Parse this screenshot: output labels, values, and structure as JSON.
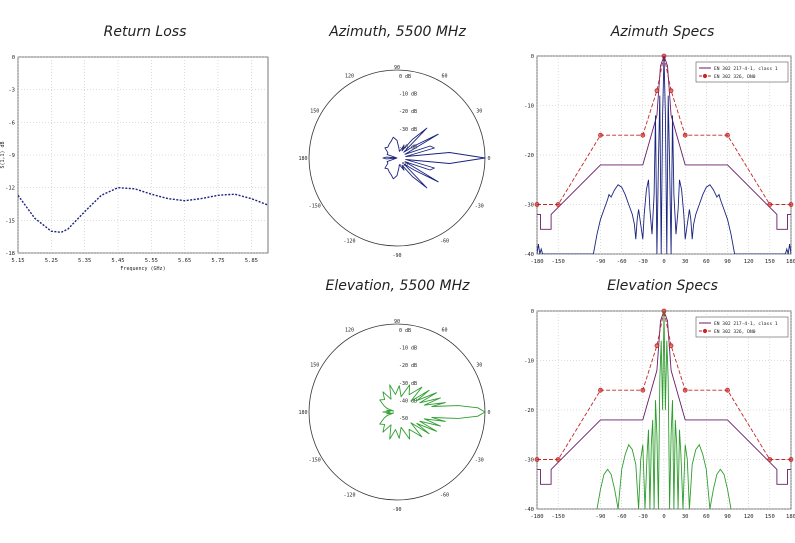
{
  "chart_data": [
    {
      "id": "return_loss",
      "type": "line",
      "title": "Return Loss",
      "xlabel": "Frequency (GHz)",
      "ylabel": "S(1,1) dB",
      "xlim": [
        5.15,
        5.9
      ],
      "ylim": [
        -18,
        0
      ],
      "x_ticks": [
        "5.15",
        "5.25",
        "5.35",
        "5.45",
        "5.55",
        "5.65",
        "5.75",
        "5.85"
      ],
      "y_ticks": [
        "0",
        "-3",
        "-6",
        "-9",
        "-12",
        "-15",
        "-18"
      ],
      "grid": true,
      "series": [
        {
          "color": "#1a237e",
          "x": [
            5.15,
            5.2,
            5.25,
            5.28,
            5.3,
            5.35,
            5.4,
            5.45,
            5.5,
            5.55,
            5.6,
            5.65,
            5.7,
            5.75,
            5.8,
            5.85,
            5.9
          ],
          "y": [
            -12.7,
            -14.8,
            -16.0,
            -16.1,
            -15.8,
            -14.2,
            -12.7,
            -12.0,
            -12.1,
            -12.6,
            -13.0,
            -13.2,
            -13.0,
            -12.7,
            -12.6,
            -13.0,
            -13.6
          ]
        }
      ]
    },
    {
      "id": "azimuth_polar",
      "type": "polar",
      "title": "Azimuth, 5500 MHz",
      "ring_labels": [
        "0 dB",
        "-10 dB",
        "-20 dB",
        "-30 dB",
        "-40 dB",
        "-50"
      ],
      "angle_labels": [
        "90",
        "60",
        "30",
        "0",
        "-30",
        "-60",
        "-90",
        "-120",
        "-150",
        "180",
        "150",
        "120"
      ],
      "r_min_db": -50,
      "series": [
        {
          "color": "#1a237e",
          "angle_deg": [
            0,
            6,
            10,
            15,
            20,
            25,
            30,
            35,
            40,
            45,
            50,
            55,
            60,
            70,
            80,
            90,
            100,
            110,
            120,
            130,
            140,
            150,
            160,
            170,
            175,
            180,
            185,
            190,
            200,
            210,
            220,
            230,
            240,
            250,
            260,
            270,
            280,
            290,
            300,
            305,
            310,
            315,
            320,
            325,
            330,
            335,
            340,
            345,
            350,
            354,
            360
          ],
          "r_db": [
            0,
            -20,
            -45,
            -28,
            -30,
            -45,
            -23,
            -38,
            -45,
            -26,
            -36,
            -45,
            -42,
            -46,
            -44,
            -40,
            -38,
            -40,
            -41,
            -42,
            -41,
            -44,
            -44,
            -50,
            -44,
            -42,
            -44,
            -50,
            -44,
            -44,
            -41,
            -42,
            -41,
            -40,
            -38,
            -40,
            -44,
            -46,
            -42,
            -45,
            -36,
            -26,
            -45,
            -38,
            -23,
            -45,
            -30,
            -28,
            -45,
            -20,
            0
          ]
        }
      ]
    },
    {
      "id": "azimuth_specs",
      "type": "line",
      "title": "Azimuth Specs",
      "xlim": [
        -180,
        180
      ],
      "ylim": [
        -40,
        0
      ],
      "x_ticks": [
        "-180",
        "-150",
        "-90",
        "-60",
        "-30",
        "0",
        "30",
        "60",
        "90",
        "120",
        "150",
        "180"
      ],
      "y_ticks": [
        "0",
        "-10",
        "-20",
        "-30",
        "-40"
      ],
      "grid": true,
      "legend": [
        "EN 302 217-4-1, class 1",
        "EN 302 326, DN0"
      ],
      "legend_placement": "top-right",
      "series": [
        {
          "name": "EN 302 217-4-1, class 1",
          "color": "#6a1b6a",
          "x": [
            -180,
            -175,
            -175,
            -160,
            -160,
            -90,
            -30,
            -10,
            -5,
            0,
            5,
            10,
            30,
            90,
            160,
            160,
            175,
            175,
            180
          ],
          "y": [
            -32,
            -32,
            -35,
            -35,
            -32,
            -22,
            -22,
            -12,
            -2,
            0,
            -2,
            -12,
            -22,
            -22,
            -32,
            -35,
            -35,
            -32,
            -32
          ]
        },
        {
          "name": "EN 302 326, DN0",
          "color": "#c62828",
          "marker": "circle",
          "x": [
            -180,
            -150,
            -90,
            -30,
            -10,
            0,
            10,
            30,
            90,
            150,
            180
          ],
          "y": [
            -30,
            -30,
            -16,
            -16,
            -7,
            0,
            -7,
            -16,
            -16,
            -30,
            -30
          ],
          "dashed": true
        },
        {
          "color": "#1a237e",
          "x": [
            -180,
            -178,
            -176,
            -174,
            -172,
            -100,
            -95,
            -90,
            -85,
            -80,
            -78,
            -75,
            -70,
            -65,
            -60,
            -55,
            -50,
            -45,
            -42,
            -40,
            -38,
            -36,
            -33,
            -30,
            -28,
            -25,
            -22,
            -20,
            -17,
            -14,
            -12,
            -10,
            -8,
            -6,
            -4,
            -2,
            0,
            2,
            4,
            6,
            8,
            10,
            12,
            14,
            17,
            20,
            22,
            25,
            28,
            30,
            33,
            36,
            38,
            40,
            42,
            45,
            50,
            55,
            60,
            65,
            70,
            75,
            78,
            80,
            85,
            90,
            95,
            100,
            172,
            174,
            176,
            178,
            180
          ],
          "y": [
            -40,
            -38,
            -40,
            -39,
            -40,
            -40,
            -36,
            -33,
            -31,
            -29,
            -28,
            -28.5,
            -27,
            -26,
            -26.5,
            -28,
            -30,
            -32,
            -34,
            -37,
            -33,
            -31,
            -34,
            -37,
            -32,
            -27,
            -25,
            -31,
            -36,
            -28,
            -12,
            -40,
            -22,
            -8,
            -40,
            -12,
            0,
            -12,
            -40,
            -8,
            -22,
            -40,
            -12,
            -28,
            -36,
            -31,
            -25,
            -27,
            -32,
            -37,
            -34,
            -31,
            -33,
            -37,
            -34,
            -32,
            -30,
            -28,
            -26.5,
            -26,
            -27,
            -28.5,
            -28,
            -29,
            -31,
            -33,
            -36,
            -40,
            -40,
            -39,
            -40,
            -38,
            -40
          ]
        }
      ]
    },
    {
      "id": "elevation_polar",
      "type": "polar",
      "title": "Elevation, 5500 MHz",
      "ring_labels": [
        "0 dB",
        "-10 dB",
        "-20 dB",
        "-30 dB",
        "-40 dB",
        "-50"
      ],
      "angle_labels": [
        "90",
        "60",
        "30",
        "0",
        "-30",
        "-60",
        "-90",
        "-120",
        "-150",
        "180",
        "150",
        "120"
      ],
      "r_min_db": -50,
      "series": [
        {
          "color": "#2e9e2e",
          "angle_deg": [
            0,
            3,
            6,
            9,
            11,
            14,
            18,
            22,
            26,
            30,
            34,
            38,
            45,
            55,
            65,
            75,
            85,
            95,
            105,
            115,
            125,
            135,
            145,
            155,
            160,
            165,
            170,
            175,
            180,
            185,
            190,
            195,
            200,
            205,
            215,
            225,
            235,
            245,
            255,
            265,
            275,
            285,
            295,
            305,
            315,
            322,
            326,
            330,
            334,
            338,
            342,
            346,
            349,
            351,
            354,
            357,
            360
          ],
          "r_db": [
            0,
            -4,
            -15,
            -30,
            -22,
            -34,
            -24,
            -36,
            -25,
            -37,
            -28,
            -40,
            -30,
            -38,
            -33,
            -41,
            -35,
            -40,
            -34,
            -42,
            -36,
            -40,
            -38,
            -42,
            -44,
            -48,
            -44,
            -46,
            -42,
            -46,
            -44,
            -48,
            -44,
            -42,
            -38,
            -40,
            -36,
            -42,
            -34,
            -40,
            -35,
            -41,
            -33,
            -38,
            -30,
            -40,
            -28,
            -37,
            -25,
            -36,
            -24,
            -34,
            -22,
            -30,
            -15,
            -4,
            0
          ]
        }
      ]
    },
    {
      "id": "elevation_specs",
      "type": "line",
      "title": "Elevation Specs",
      "xlim": [
        -180,
        180
      ],
      "ylim": [
        -40,
        0
      ],
      "x_ticks": [
        "-180",
        "-150",
        "-90",
        "-60",
        "-30",
        "0",
        "30",
        "60",
        "90",
        "120",
        "150",
        "180"
      ],
      "y_ticks": [
        "0",
        "-10",
        "-20",
        "-30",
        "-40"
      ],
      "grid": true,
      "legend": [
        "EN 302 217-4-1, class 1",
        "EN 302 326, DN0"
      ],
      "legend_placement": "top-right",
      "series": [
        {
          "name": "EN 302 217-4-1, class 1",
          "color": "#6a1b6a",
          "x": [
            -180,
            -175,
            -175,
            -160,
            -160,
            -90,
            -30,
            -10,
            -5,
            0,
            5,
            10,
            30,
            90,
            160,
            160,
            175,
            175,
            180
          ],
          "y": [
            -32,
            -32,
            -35,
            -35,
            -32,
            -22,
            -22,
            -12,
            -2,
            0,
            -2,
            -12,
            -22,
            -22,
            -32,
            -35,
            -35,
            -32,
            -32
          ]
        },
        {
          "name": "EN 302 326, DN0",
          "color": "#c62828",
          "marker": "circle",
          "x": [
            -180,
            -150,
            -90,
            -30,
            -10,
            0,
            10,
            30,
            90,
            150,
            180
          ],
          "y": [
            -30,
            -30,
            -16,
            -16,
            -7,
            0,
            -7,
            -16,
            -16,
            -30,
            -30
          ],
          "dashed": true
        },
        {
          "color": "#2e9e2e",
          "x": [
            -95,
            -90,
            -85,
            -80,
            -75,
            -70,
            -65,
            -60,
            -55,
            -50,
            -45,
            -40,
            -36,
            -33,
            -30,
            -27,
            -24,
            -22,
            -20,
            -18,
            -16,
            -14,
            -12,
            -10,
            -8,
            -6,
            -4,
            -2,
            0,
            2,
            4,
            6,
            8,
            10,
            12,
            14,
            16,
            18,
            20,
            22,
            24,
            27,
            30,
            33,
            36,
            40,
            45,
            50,
            55,
            60,
            65,
            70,
            75,
            80,
            85,
            90,
            95
          ],
          "y": [
            -40,
            -36,
            -33,
            -32,
            -33,
            -36,
            -40,
            -32,
            -29,
            -27,
            -28,
            -31,
            -40,
            -30,
            -27,
            -40,
            -29,
            -24,
            -40,
            -27,
            -22,
            -40,
            -18,
            -25,
            -40,
            -14,
            -6,
            -20,
            0,
            -20,
            -6,
            -14,
            -40,
            -25,
            -18,
            -40,
            -22,
            -27,
            -40,
            -24,
            -29,
            -40,
            -27,
            -30,
            -40,
            -31,
            -28,
            -27,
            -29,
            -32,
            -40,
            -36,
            -33,
            -32,
            -33,
            -36,
            -40
          ]
        }
      ]
    }
  ]
}
